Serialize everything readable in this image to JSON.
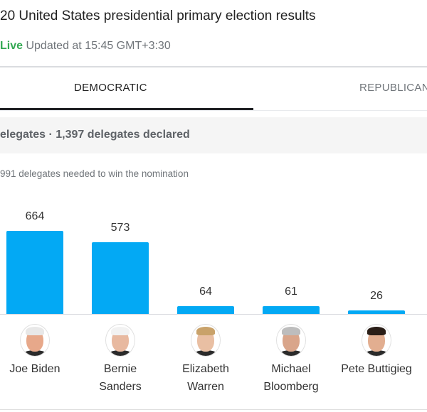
{
  "header": {
    "title": "20 United States presidential primary election results",
    "live_label": "Live",
    "updated": "Updated at 15:45 GMT+3:30"
  },
  "tabs": [
    {
      "label": "DEMOCRATIC",
      "selected": true
    },
    {
      "label": "REPUBLICAN",
      "selected": false
    }
  ],
  "summary": "elegates · 1,397 delegates declared",
  "needed": "991 delegates needed to win the nomination",
  "colors": {
    "bar": "#03a9f4",
    "live": "#34a853"
  },
  "chart_data": {
    "type": "bar",
    "categories": [
      "Joe Biden",
      "Bernie Sanders",
      "Elizabeth Warren",
      "Michael Bloomberg",
      "Pete Buttigieg"
    ],
    "values": [
      664,
      573,
      64,
      61,
      26
    ],
    "value_labels": [
      "664",
      "573",
      "64",
      "61",
      "26"
    ],
    "name_lines": [
      [
        "Joe Biden"
      ],
      [
        "Bernie",
        "Sanders"
      ],
      [
        "Elizabeth",
        "Warren"
      ],
      [
        "Michael",
        "Bloomberg"
      ],
      [
        "Pete Buttigieg"
      ]
    ],
    "avatar_icons": [
      "joe-biden-photo",
      "bernie-sanders-photo",
      "elizabeth-warren-photo",
      "michael-bloomberg-photo",
      "pete-buttigieg-photo"
    ],
    "grid": false,
    "legend": "none"
  }
}
